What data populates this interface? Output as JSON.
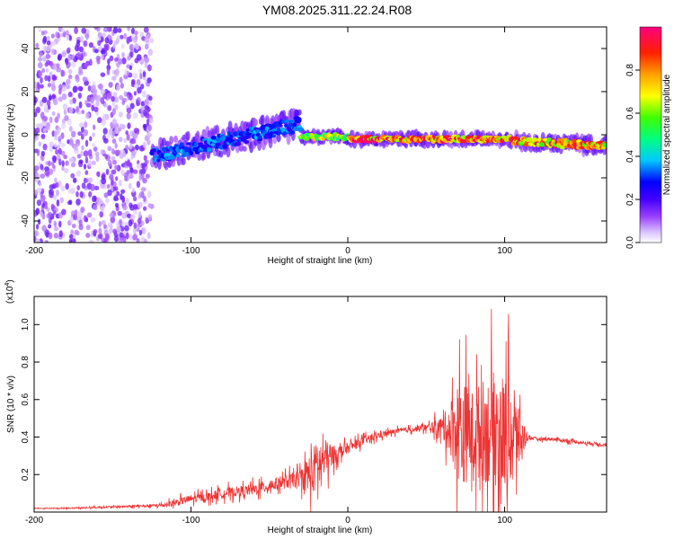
{
  "page_title": "YM08.2025.311.22.24.R08",
  "chart_data": [
    {
      "type": "heatmap",
      "title": "YM08.2025.311.22.24.R08",
      "xlabel": "Height of straight line (km)",
      "ylabel": "Frequency (Hz)",
      "xlim": [
        -200,
        165
      ],
      "ylim": [
        -50,
        50
      ],
      "xticks": [
        -200,
        -100,
        0,
        100
      ],
      "yticks": [
        -40,
        -20,
        0,
        20,
        40
      ],
      "grid": false,
      "colorbar": {
        "label": "Normalized spectral amplitude",
        "range": [
          0,
          1
        ],
        "ticks": [
          0.0,
          0.2,
          0.4,
          0.6,
          0.8
        ],
        "tick_labels": [
          "0.0",
          "0.2",
          "0.4",
          "0.6",
          "0.8"
        ],
        "colors": [
          "#ffffff",
          "#c8a0ff",
          "#7b00ff",
          "#0000ff",
          "#00ffff",
          "#00ff00",
          "#ffff00",
          "#ff8000",
          "#ff0000",
          "#ff0080"
        ]
      },
      "description_bands": [
        {
          "x_range": [
            -200,
            -125
          ],
          "freq_center": 0,
          "freq_halfwidth": 50,
          "level": "noise"
        },
        {
          "x_range": [
            -125,
            -30
          ],
          "freq_start": -10,
          "freq_end": 5,
          "freq_halfwidth": 6,
          "level": 0.35
        },
        {
          "x_range": [
            -30,
            0
          ],
          "freq_center": -1,
          "freq_halfwidth": 2,
          "level": 0.7
        },
        {
          "x_range": [
            0,
            105
          ],
          "freq_center": -2,
          "freq_halfwidth": 2,
          "level": 0.95
        },
        {
          "x_range": [
            105,
            165
          ],
          "freq_start": -3,
          "freq_end": -5,
          "freq_halfwidth": 3,
          "level": 0.9
        }
      ]
    },
    {
      "type": "line",
      "xlabel": "Height of straight line (km)",
      "ylabel": "SNR (10 * v/v)",
      "y_multiplier": "(x10^4)",
      "y_multiplier_base": "(x10",
      "y_multiplier_exp": "4",
      "y_multiplier_close": ")",
      "xlim": [
        -200,
        165
      ],
      "ylim": [
        0,
        1.15
      ],
      "xticks": [
        -200,
        -100,
        0,
        100
      ],
      "yticks": [
        0.2,
        0.4,
        0.6,
        0.8,
        1.0
      ],
      "grid": false,
      "series": [
        {
          "name": "SNR",
          "color": "#ee3333",
          "x": [
            -200,
            -180,
            -160,
            -140,
            -120,
            -110,
            -100,
            -90,
            -80,
            -70,
            -60,
            -50,
            -40,
            -30,
            -25,
            -20,
            -15,
            -10,
            -5,
            0,
            10,
            20,
            30,
            40,
            50,
            55,
            60,
            65,
            70,
            75,
            80,
            85,
            90,
            95,
            100,
            105,
            110,
            115,
            120,
            130,
            140,
            150,
            165
          ],
          "base": [
            0.02,
            0.02,
            0.025,
            0.03,
            0.035,
            0.05,
            0.07,
            0.08,
            0.1,
            0.11,
            0.12,
            0.14,
            0.16,
            0.18,
            0.2,
            0.24,
            0.28,
            0.3,
            0.32,
            0.34,
            0.38,
            0.41,
            0.43,
            0.44,
            0.45,
            0.45,
            0.45,
            0.45,
            0.44,
            0.42,
            0.42,
            0.43,
            0.44,
            0.44,
            0.42,
            0.4,
            0.4,
            0.4,
            0.39,
            0.39,
            0.38,
            0.37,
            0.36
          ],
          "noise": [
            0.005,
            0.005,
            0.01,
            0.01,
            0.02,
            0.04,
            0.05,
            0.05,
            0.06,
            0.06,
            0.07,
            0.07,
            0.08,
            0.1,
            0.25,
            0.3,
            0.25,
            0.12,
            0.08,
            0.06,
            0.05,
            0.04,
            0.03,
            0.03,
            0.04,
            0.08,
            0.12,
            0.3,
            0.6,
            0.6,
            0.5,
            0.6,
            0.65,
            0.7,
            0.7,
            0.6,
            0.3,
            0.03,
            0.02,
            0.02,
            0.02,
            0.02,
            0.02
          ]
        }
      ]
    }
  ]
}
